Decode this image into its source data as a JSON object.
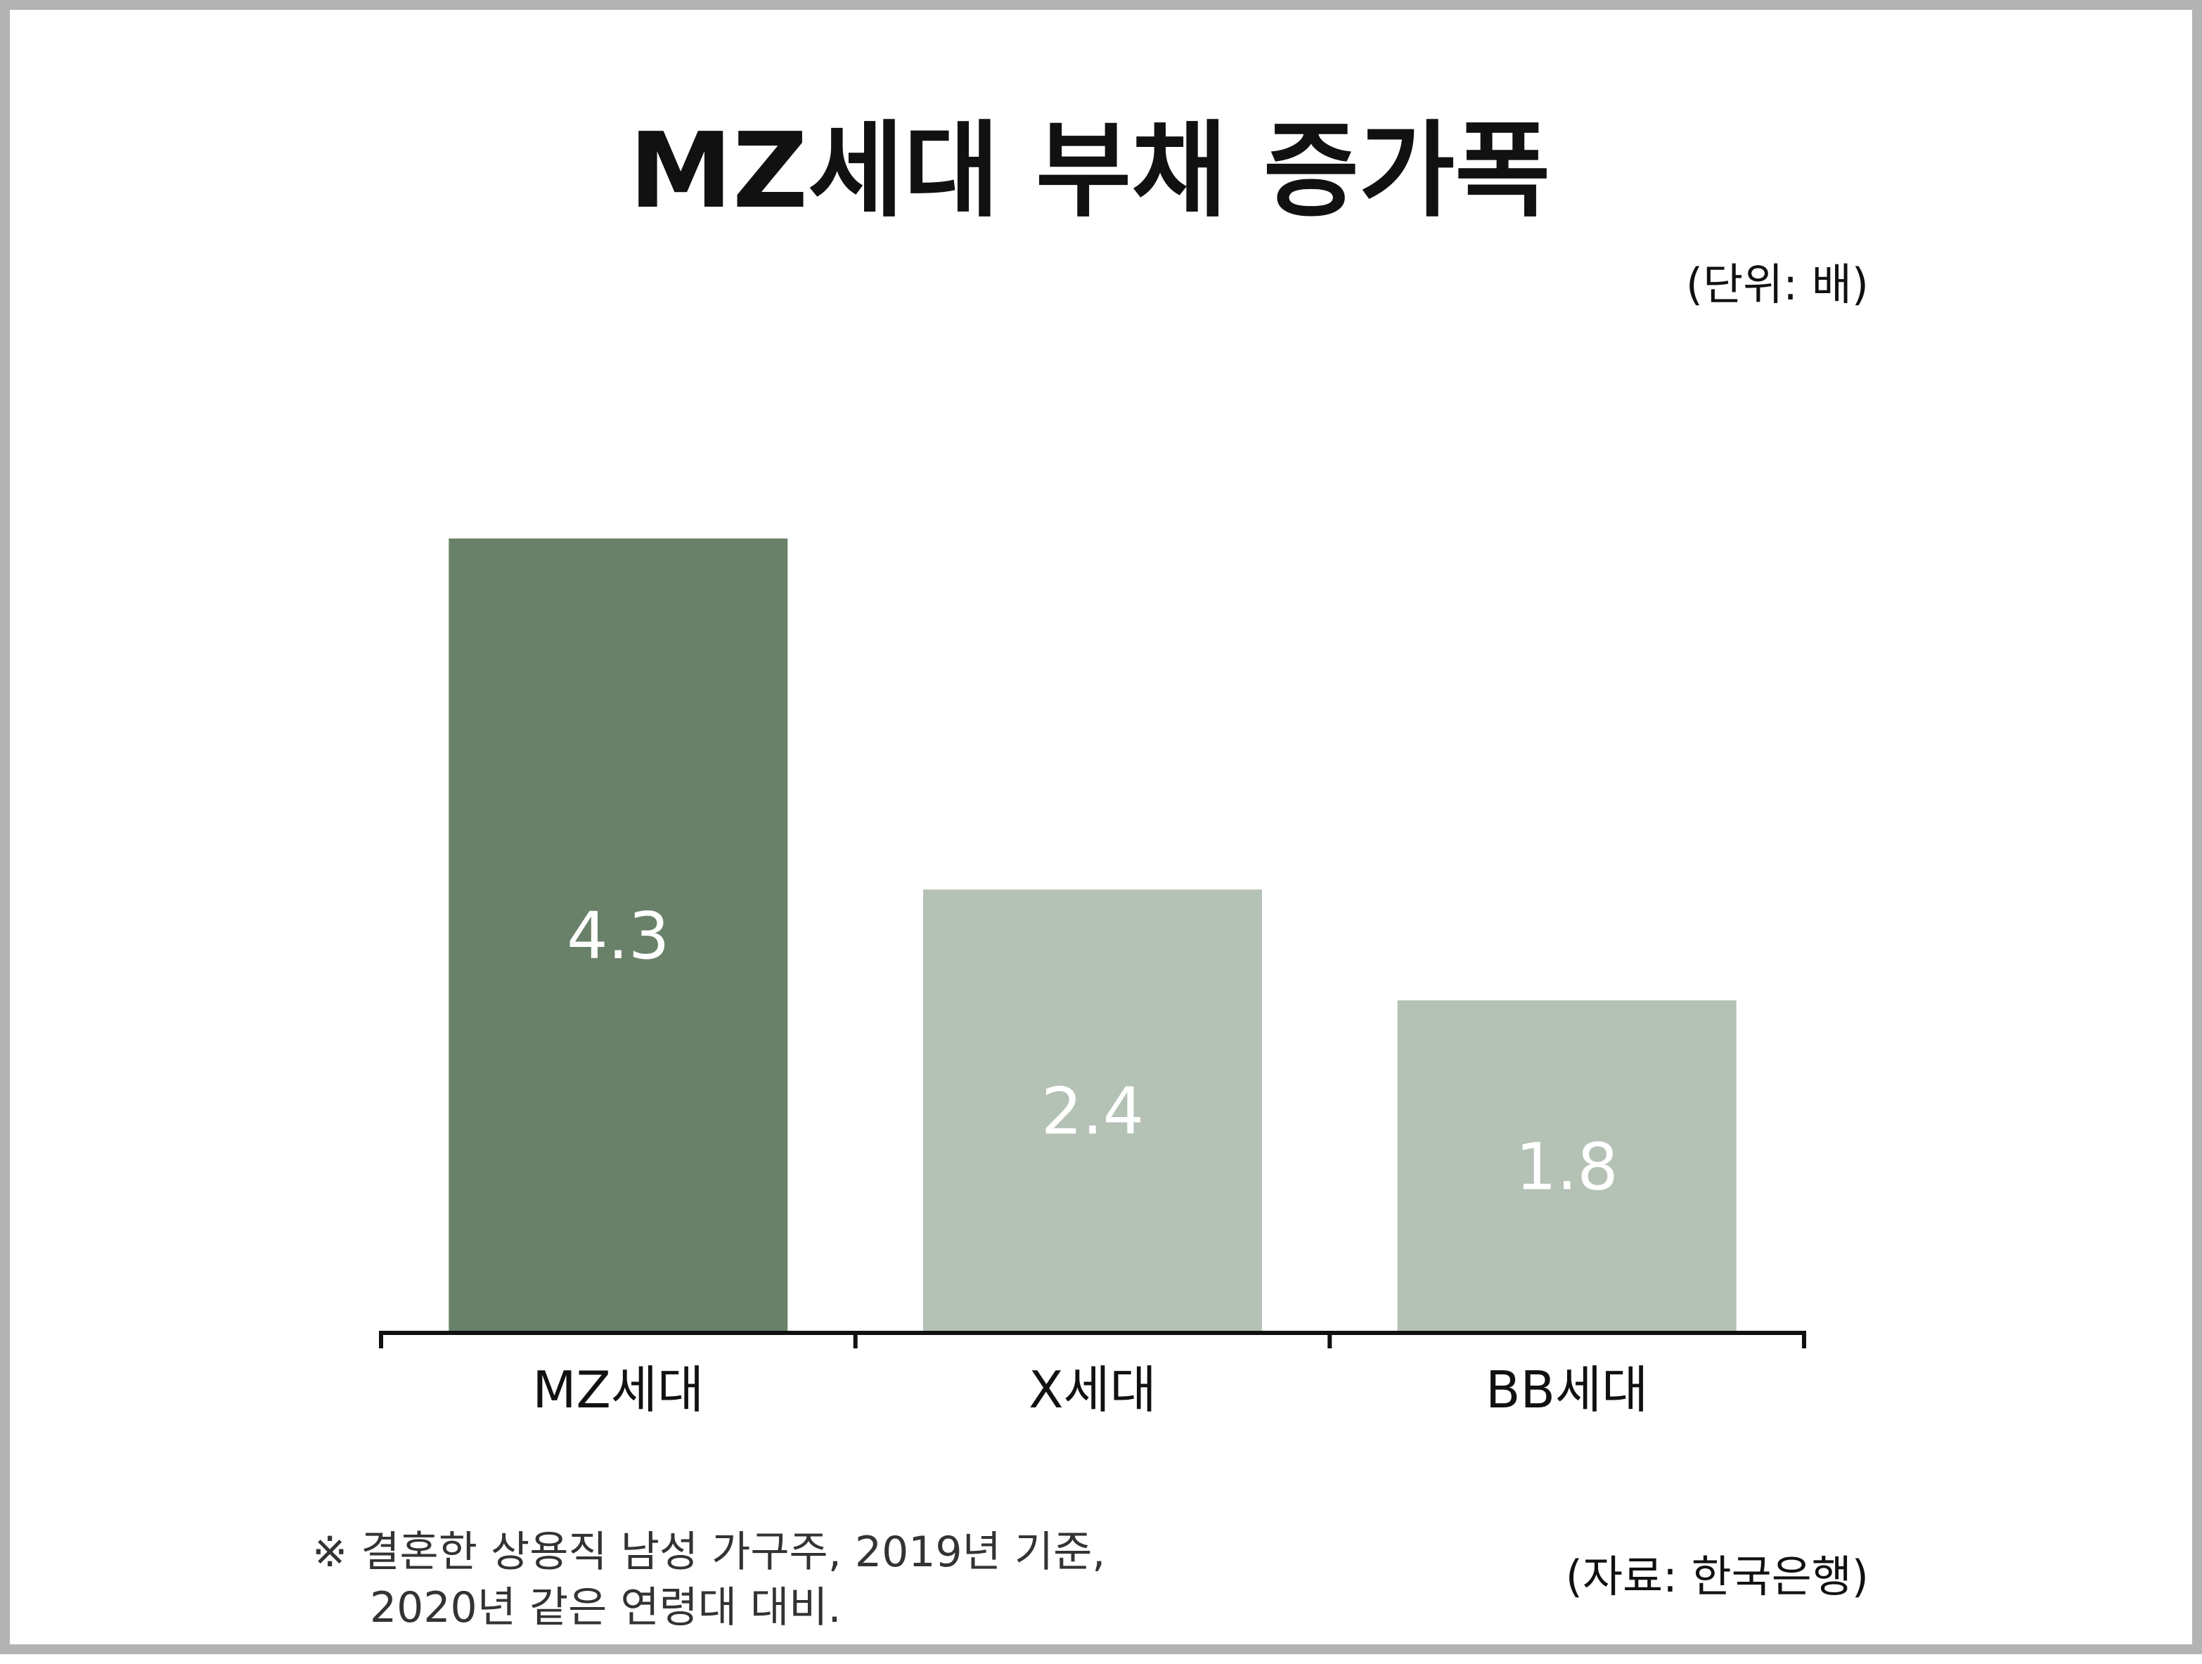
{
  "chart_data": {
    "type": "bar",
    "title": "MZ세대 부채 증가폭",
    "unit": "(단위: 배)",
    "categories": [
      "MZ세대",
      "X세대",
      "BB세대"
    ],
    "values": [
      4.3,
      2.4,
      1.8
    ],
    "value_labels": [
      "4.3",
      "2.4",
      "1.8"
    ],
    "bar_colors": [
      "#6a8169",
      "#b4c1b5",
      "#b4c1b5"
    ],
    "ylim": [
      0,
      4.3
    ],
    "grid": false,
    "legend": "none",
    "note_lines": [
      "※ 결혼한 상용직 남성 가구주, 2019년 기준,",
      "2020년 같은 연령대 대비."
    ],
    "source": "(자료: 한국은행)"
  },
  "colors": {
    "accent": "#6a8169",
    "muted": "#b4c1b5",
    "axis": "#111111",
    "frame": "#b3b3b3"
  }
}
